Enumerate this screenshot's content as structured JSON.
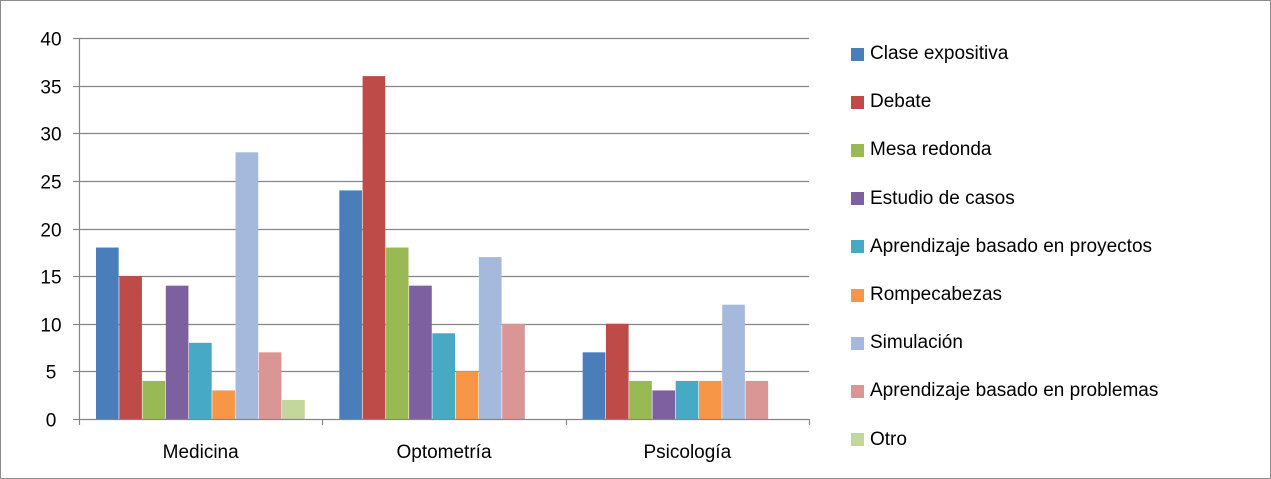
{
  "chart_data": {
    "type": "bar",
    "categories": [
      "Medicina",
      "Optometría",
      "Psicología"
    ],
    "series": [
      {
        "name": "Clase expositiva",
        "color": "#4A7EBB",
        "values": [
          18,
          24,
          7
        ]
      },
      {
        "name": "Debate",
        "color": "#BE4B48",
        "values": [
          15,
          36,
          10
        ]
      },
      {
        "name": "Mesa redonda",
        "color": "#98B954",
        "values": [
          4,
          18,
          4
        ]
      },
      {
        "name": "Estudio de casos",
        "color": "#7D60A0",
        "values": [
          14,
          14,
          3
        ]
      },
      {
        "name": "Aprendizaje basado en proyectos",
        "color": "#46AAC4",
        "values": [
          8,
          9,
          4
        ]
      },
      {
        "name": "Rompecabezas",
        "color": "#F79646",
        "values": [
          3,
          5,
          4
        ]
      },
      {
        "name": "Simulación",
        "color": "#A5B9DC",
        "values": [
          28,
          17,
          12
        ]
      },
      {
        "name": "Aprendizaje basado en problemas",
        "color": "#DA9694",
        "values": [
          7,
          10,
          4
        ]
      },
      {
        "name": "Otro",
        "color": "#C3D69B",
        "values": [
          2,
          0,
          0
        ]
      }
    ],
    "yticks": [
      "0",
      "5",
      "10",
      "15",
      "20",
      "25",
      "30",
      "35",
      "40"
    ],
    "ylim": [
      0,
      40
    ],
    "grid": true,
    "legend_position": "right",
    "title": "",
    "xlabel": "",
    "ylabel": ""
  }
}
